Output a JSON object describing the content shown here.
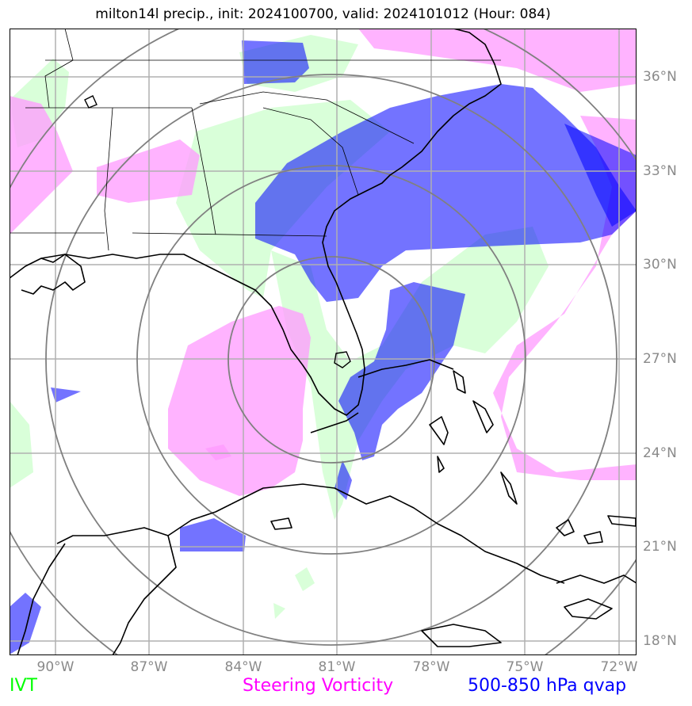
{
  "title": "milton14l precip., init: 2024100700, valid: 2024101012 (Hour: 084)",
  "longitudes": [
    "90°W",
    "87°W",
    "84°W",
    "81°W",
    "78°W",
    "75°W",
    "72°W"
  ],
  "latitudes": [
    "36°N",
    "33°N",
    "30°N",
    "27°N",
    "24°N",
    "21°N",
    "18°N"
  ],
  "legend": [
    {
      "label": "IVT",
      "color": "#00ff00"
    },
    {
      "label": "Steering Vorticity",
      "color": "#ff00ff"
    },
    {
      "label": "500-850 hPa qvap",
      "color": "#0000ff"
    }
  ],
  "colors": {
    "ivt_fill": "#ccffcc",
    "vorticity_fill": "#ff99ff",
    "qvap_fill": "#0000ff",
    "grid": "#b0b0b0",
    "range_ring": "#808080",
    "coastline": "#000000",
    "axis_label": "#8a8a8a"
  }
}
